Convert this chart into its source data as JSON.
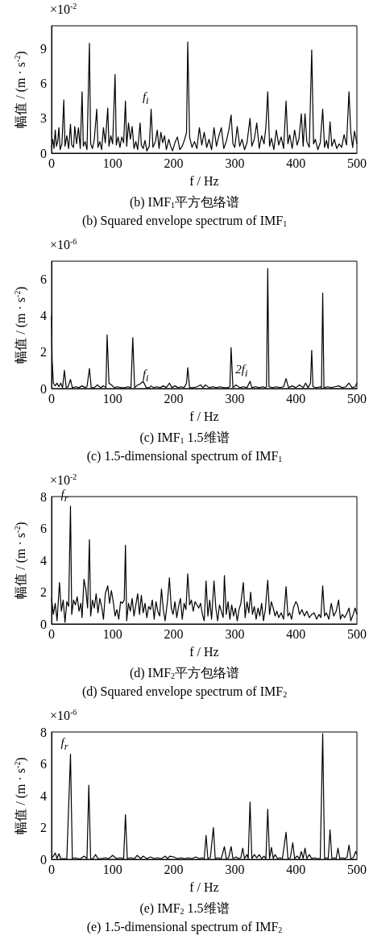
{
  "chart_data": [
    {
      "type": "line",
      "title": "(b) IMF$_{1}$平方包络谱",
      "subtitle": "(b) Squared envelope spectrum of IMF$_{1}$",
      "xlabel": "f / Hz",
      "ylabel": "幅值 / (m · s$^{-2}$)",
      "annotations": [
        "×10$^{-2}$",
        {
          "text": "f$_{i}$",
          "x": 163,
          "y": 3.8
        }
      ],
      "color": "#000000",
      "line_style": "solid",
      "xlim": [
        0,
        500
      ],
      "xticks": [
        0,
        100,
        200,
        300,
        400,
        500
      ],
      "ylim": [
        0,
        11
      ],
      "yticks": [
        0,
        3,
        6,
        9
      ],
      "x": [
        0,
        2,
        4,
        6,
        8,
        10,
        12,
        14,
        17,
        20,
        22,
        25,
        28,
        31,
        33,
        36,
        38,
        41,
        44,
        47,
        50,
        52,
        55,
        58,
        62,
        64,
        67,
        70,
        74,
        76,
        79,
        82,
        85,
        88,
        92,
        94,
        97,
        100,
        104,
        106,
        109,
        112,
        115,
        118,
        121,
        123,
        126,
        129,
        132,
        135,
        138,
        141,
        145,
        147,
        150,
        153,
        156,
        160,
        163,
        166,
        170,
        173,
        176,
        179,
        182,
        185,
        188,
        192,
        195,
        198,
        202,
        206,
        210,
        214,
        218,
        221,
        223,
        226,
        230,
        234,
        238,
        242,
        246,
        250,
        254,
        258,
        262,
        266,
        270,
        274,
        278,
        282,
        286,
        290,
        294,
        297,
        300,
        304,
        308,
        312,
        316,
        320,
        325,
        328,
        332,
        336,
        340,
        344,
        348,
        351,
        354,
        357,
        360,
        364,
        368,
        372,
        376,
        380,
        384,
        387,
        390,
        394,
        398,
        402,
        405,
        409,
        412,
        415,
        418,
        422,
        426,
        429,
        432,
        436,
        440,
        444,
        447,
        450,
        453,
        456,
        459,
        463,
        467,
        471,
        475,
        479,
        483,
        487,
        490,
        493,
        496,
        500
      ],
      "values": [
        0.5,
        1.2,
        0.4,
        2.0,
        0.6,
        1.0,
        2.2,
        0.3,
        0.8,
        4.6,
        0.6,
        1.5,
        0.4,
        2.5,
        0.7,
        0.5,
        2.3,
        0.8,
        2.2,
        0.4,
        5.3,
        0.6,
        1.0,
        0.3,
        9.5,
        0.8,
        0.4,
        1.2,
        3.8,
        0.5,
        1.0,
        0.3,
        2.2,
        0.9,
        3.9,
        0.6,
        1.5,
        0.8,
        6.8,
        0.7,
        1.4,
        0.5,
        1.4,
        0.9,
        4.5,
        0.6,
        2.6,
        1.2,
        2.3,
        0.4,
        1.0,
        0.3,
        2.6,
        0.7,
        0.4,
        1.1,
        0.2,
        0.6,
        3.8,
        0.5,
        1.0,
        2.0,
        0.4,
        1.8,
        0.9,
        1.5,
        0.3,
        1.2,
        0.6,
        0.2,
        0.9,
        1.4,
        0.3,
        0.6,
        1.2,
        1.8,
        9.6,
        1.4,
        0.5,
        1.0,
        0.4,
        2.2,
        0.7,
        1.8,
        0.5,
        1.2,
        0.3,
        2.2,
        0.6,
        1.5,
        2.2,
        0.4,
        1.0,
        1.9,
        3.3,
        0.8,
        0.5,
        2.3,
        0.6,
        1.2,
        0.3,
        0.9,
        3.0,
        0.6,
        1.2,
        2.6,
        0.4,
        1.5,
        0.8,
        2.3,
        5.3,
        0.6,
        1.3,
        0.3,
        2.0,
        0.7,
        1.4,
        0.4,
        4.5,
        0.8,
        1.6,
        0.4,
        2.0,
        0.7,
        1.2,
        3.4,
        0.6,
        3.4,
        1.0,
        0.5,
        8.9,
        0.8,
        1.2,
        0.3,
        0.9,
        3.8,
        0.5,
        1.1,
        0.4,
        2.7,
        0.6,
        1.2,
        0.4,
        0.8,
        0.5,
        1.6,
        0.7,
        5.3,
        1.8,
        0.5,
        1.9,
        0.8
      ]
    },
    {
      "type": "line",
      "title": "(c) IMF$_{1}$ 1.5维谱",
      "subtitle": "(c) 1.5-dimensional spectrum of IMF$_{1}$",
      "xlabel": "f / Hz",
      "ylabel": "幅值 / (m · s$^{-2}$)",
      "annotations": [
        "×10$^{-6}$",
        {
          "text": "f$_{i}$",
          "x": 163,
          "y": 0.15
        },
        {
          "text": "2f$_{i}$",
          "x": 325,
          "y": 0.4
        }
      ],
      "color": "#000000",
      "line_style": "solid",
      "xlim": [
        0,
        500
      ],
      "xticks": [
        0,
        100,
        200,
        300,
        400,
        500
      ],
      "ylim": [
        0,
        7
      ],
      "yticks": [
        0,
        2,
        4,
        6
      ],
      "x": [
        0,
        1,
        3,
        6,
        9,
        12,
        15,
        18,
        21,
        24,
        27,
        31,
        34,
        40,
        45,
        50,
        55,
        58,
        62,
        65,
        70,
        75,
        80,
        85,
        89,
        91,
        94,
        98,
        103,
        108,
        114,
        120,
        125,
        130,
        133,
        136,
        141,
        145,
        150,
        155,
        160,
        163,
        167,
        172,
        178,
        183,
        188,
        193,
        197,
        202,
        207,
        212,
        217,
        221,
        223,
        226,
        232,
        238,
        244,
        248,
        252,
        258,
        264,
        270,
        276,
        282,
        288,
        292,
        294,
        297,
        302,
        308,
        314,
        320,
        325,
        328,
        334,
        340,
        346,
        350,
        352,
        354,
        356,
        362,
        368,
        374,
        380,
        384,
        388,
        394,
        400,
        406,
        412,
        416,
        420,
        424,
        426,
        428,
        434,
        440,
        442,
        444,
        446,
        452,
        458,
        464,
        470,
        476,
        482,
        487,
        492,
        497,
        500
      ],
      "values": [
        4.0,
        1.5,
        0.3,
        0.15,
        0.3,
        0.1,
        0.3,
        0.05,
        1.0,
        0.05,
        0.1,
        0.5,
        0.05,
        0.1,
        0.05,
        0.15,
        0.05,
        0.1,
        1.1,
        0.05,
        0.05,
        0.2,
        0.05,
        0.15,
        0.05,
        2.95,
        0.3,
        0.2,
        0.05,
        0.1,
        0.05,
        0.05,
        0.1,
        0.05,
        2.8,
        0.05,
        0.2,
        0.25,
        0.4,
        0.05,
        0.05,
        0.15,
        0.05,
        0.1,
        0.05,
        0.15,
        0.05,
        0.3,
        0.05,
        0.15,
        0.05,
        0.1,
        0.05,
        0.3,
        1.15,
        0.05,
        0.05,
        0.1,
        0.2,
        0.05,
        0.2,
        0.05,
        0.1,
        0.05,
        0.1,
        0.05,
        0.05,
        0.1,
        2.25,
        0.05,
        0.2,
        0.05,
        0.1,
        0.05,
        0.4,
        0.05,
        0.1,
        0.05,
        0.1,
        0.05,
        0.1,
        6.6,
        0.1,
        0.05,
        0.1,
        0.05,
        0.1,
        0.55,
        0.05,
        0.15,
        0.05,
        0.2,
        0.05,
        0.3,
        0.05,
        0.3,
        2.1,
        0.1,
        0.05,
        0.1,
        0.05,
        5.25,
        0.05,
        0.1,
        0.05,
        0.1,
        0.15,
        0.05,
        0.1,
        0.3,
        0.05,
        0.1,
        0.3
      ]
    },
    {
      "type": "line",
      "title": "(d) IMF$_{2}$平方包络谱",
      "subtitle": "(d) Squared envelope spectrum of IMF$_{2}$",
      "xlabel": "f / Hz",
      "ylabel": "幅值 / (m · s$^{-2}$)",
      "annotations": [
        "×10$^{-2}$",
        {
          "text": "f$_{r}$",
          "x": 31,
          "y": 7.4
        }
      ],
      "color": "#000000",
      "line_style": "solid",
      "xlim": [
        0,
        500
      ],
      "xticks": [
        0,
        100,
        200,
        300,
        400,
        500
      ],
      "ylim": [
        0,
        8
      ],
      "yticks": [
        0,
        2,
        4,
        6,
        8
      ],
      "x": [
        0,
        3,
        6,
        9,
        13,
        16,
        19,
        22,
        25,
        28,
        31,
        33,
        36,
        39,
        42,
        45,
        48,
        50,
        53,
        56,
        59,
        62,
        64,
        67,
        70,
        73,
        76,
        79,
        82,
        85,
        88,
        92,
        95,
        98,
        101,
        104,
        107,
        110,
        113,
        116,
        119,
        121,
        123,
        126,
        129,
        132,
        135,
        138,
        141,
        144,
        147,
        150,
        153,
        156,
        159,
        162,
        165,
        168,
        171,
        174,
        177,
        180,
        183,
        186,
        190,
        193,
        196,
        199,
        202,
        205,
        208,
        211,
        214,
        217,
        220,
        223,
        226,
        229,
        232,
        235,
        238,
        241,
        244,
        247,
        250,
        253,
        256,
        259,
        262,
        266,
        269,
        272,
        275,
        278,
        281,
        283,
        286,
        289,
        292,
        295,
        298,
        301,
        304,
        307,
        310,
        314,
        317,
        320,
        323,
        326,
        329,
        332,
        335,
        338,
        341,
        344,
        347,
        350,
        354,
        357,
        360,
        363,
        366,
        369,
        372,
        376,
        380,
        384,
        387,
        390,
        393,
        396,
        400,
        403,
        406,
        410,
        414,
        418,
        422,
        426,
        430,
        434,
        438,
        441,
        444,
        447,
        450,
        454,
        458,
        462,
        466,
        470,
        473,
        476,
        480,
        484,
        487,
        490,
        494,
        497,
        500
      ],
      "values": [
        1.6,
        0.6,
        1.3,
        0.2,
        2.6,
        0.8,
        1.5,
        0.1,
        1.4,
        1.1,
        7.4,
        0.6,
        1.5,
        1.2,
        1.7,
        0.8,
        1.3,
        0.4,
        2.8,
        2.2,
        1.0,
        5.3,
        0.5,
        1.5,
        1.0,
        1.9,
        0.7,
        1.6,
        1.1,
        0.3,
        1.9,
        2.4,
        1.3,
        2.1,
        1.4,
        0.5,
        0.9,
        0.3,
        1.4,
        1.3,
        1.5,
        4.95,
        0.2,
        1.3,
        0.8,
        1.6,
        0.5,
        1.2,
        1.9,
        0.6,
        1.8,
        0.7,
        1.3,
        0.4,
        1.1,
        0.9,
        1.5,
        0.3,
        1.4,
        0.8,
        0.5,
        2.2,
        0.9,
        0.2,
        1.5,
        2.9,
        1.0,
        0.6,
        1.4,
        0.4,
        1.1,
        1.6,
        0.3,
        1.3,
        0.9,
        3.15,
        1.2,
        1.5,
        0.8,
        1.4,
        1.2,
        1.0,
        1.3,
        0.6,
        0.2,
        2.7,
        0.5,
        1.5,
        0.3,
        2.7,
        1.0,
        0.2,
        1.2,
        0.8,
        0.4,
        3.05,
        0.6,
        1.4,
        0.3,
        1.2,
        0.5,
        1.0,
        0.2,
        0.9,
        1.3,
        2.6,
        0.4,
        1.4,
        0.7,
        2.0,
        0.6,
        1.1,
        0.3,
        1.0,
        0.5,
        1.3,
        0.2,
        0.9,
        2.75,
        0.6,
        1.4,
        1.0,
        0.5,
        0.8,
        0.4,
        0.7,
        0.3,
        2.35,
        0.5,
        0.7,
        0.3,
        1.0,
        1.4,
        1.2,
        0.6,
        0.9,
        0.5,
        0.8,
        0.4,
        0.6,
        0.7,
        0.3,
        0.6,
        0.4,
        2.4,
        0.5,
        0.7,
        0.3,
        1.3,
        0.5,
        0.8,
        1.5,
        0.3,
        0.6,
        0.4,
        0.7,
        1.0,
        0.2,
        0.6,
        1.0,
        0.6
      ]
    },
    {
      "type": "line",
      "title": "(e) IMF$_{2}$ 1.5维谱",
      "subtitle": "(e) 1.5-dimensional spectrum of IMF$_{2}$",
      "xlabel": "f / Hz",
      "ylabel": "幅值 / (m · s$^{-2}$)",
      "annotations": [
        "×10$^{-6}$",
        {
          "text": "f$_{r}$",
          "x": 31,
          "y": 6.6
        }
      ],
      "color": "#000000",
      "line_style": "solid",
      "xlim": [
        0,
        500
      ],
      "xticks": [
        0,
        100,
        200,
        300,
        400,
        500
      ],
      "ylim": [
        0,
        8
      ],
      "yticks": [
        0,
        2,
        4,
        6,
        8
      ],
      "x": [
        0,
        3,
        6,
        9,
        12,
        15,
        20,
        25,
        31,
        34,
        38,
        43,
        48,
        53,
        58,
        61,
        64,
        68,
        72,
        76,
        82,
        88,
        94,
        100,
        106,
        112,
        118,
        121,
        124,
        130,
        136,
        140,
        146,
        150,
        156,
        162,
        168,
        174,
        180,
        186,
        190,
        194,
        200,
        206,
        212,
        218,
        224,
        230,
        236,
        242,
        246,
        250,
        253,
        256,
        260,
        265,
        268,
        272,
        278,
        283,
        286,
        290,
        294,
        297,
        302,
        306,
        310,
        313,
        316,
        320,
        322,
        325,
        328,
        332,
        336,
        340,
        344,
        348,
        351,
        354,
        357,
        360,
        363,
        366,
        370,
        374,
        378,
        384,
        387,
        391,
        395,
        398,
        402,
        406,
        409,
        412,
        415,
        418,
        422,
        426,
        430,
        436,
        440,
        444,
        447,
        450,
        453,
        456,
        459,
        463,
        466,
        469,
        472,
        476,
        480,
        484,
        487,
        490,
        494,
        498,
        500
      ],
      "values": [
        0.1,
        0.2,
        0.4,
        0.05,
        0.35,
        0.05,
        0.05,
        0.05,
        6.6,
        0.05,
        0.1,
        0.05,
        0.05,
        0.2,
        0.05,
        4.65,
        0.05,
        0.05,
        0.3,
        0.05,
        0.05,
        0.1,
        0.05,
        0.25,
        0.05,
        0.1,
        0.05,
        2.8,
        0.05,
        0.1,
        0.05,
        0.25,
        0.05,
        0.2,
        0.05,
        0.15,
        0.05,
        0.1,
        0.05,
        0.2,
        0.05,
        0.2,
        0.15,
        0.05,
        0.1,
        0.05,
        0.1,
        0.05,
        0.15,
        0.05,
        0.1,
        0.05,
        1.5,
        0.05,
        0.1,
        2.0,
        0.05,
        0.1,
        0.05,
        0.8,
        0.05,
        0.1,
        0.8,
        0.05,
        0.15,
        0.05,
        0.1,
        0.7,
        0.05,
        0.3,
        0.05,
        3.6,
        0.05,
        0.3,
        0.1,
        0.3,
        0.05,
        0.2,
        0.05,
        3.15,
        0.05,
        0.75,
        0.05,
        0.3,
        0.05,
        0.1,
        0.05,
        1.7,
        0.05,
        0.1,
        1.05,
        0.05,
        0.2,
        0.05,
        0.5,
        0.05,
        0.7,
        0.05,
        0.3,
        0.05,
        0.1,
        0.05,
        0.05,
        7.9,
        0.05,
        0.1,
        0.05,
        1.85,
        0.05,
        0.1,
        0.05,
        0.7,
        0.05,
        0.1,
        0.05,
        0.15,
        0.9,
        0.05,
        0.1,
        0.5,
        0.3
      ]
    }
  ]
}
